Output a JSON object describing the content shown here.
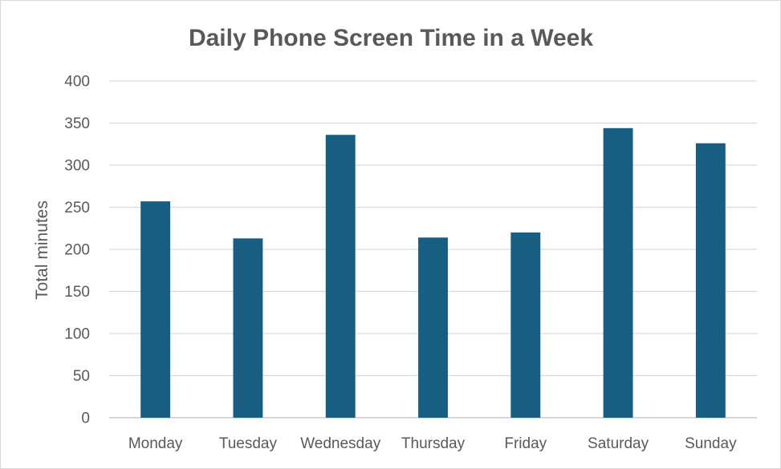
{
  "chart_data": {
    "type": "bar",
    "title": "Daily Phone Screen Time in a Week",
    "xlabel": "",
    "ylabel": "Total minutes",
    "categories": [
      "Monday",
      "Tuesday",
      "Wednesday",
      "Thursday",
      "Friday",
      "Saturday",
      "Sunday"
    ],
    "values": [
      257,
      213,
      336,
      214,
      220,
      344,
      326
    ],
    "ylim": [
      0,
      400
    ],
    "yticks": [
      0,
      50,
      100,
      150,
      200,
      250,
      300,
      350,
      400
    ],
    "grid": true,
    "legend": "none",
    "bar_color": "#175e82"
  }
}
